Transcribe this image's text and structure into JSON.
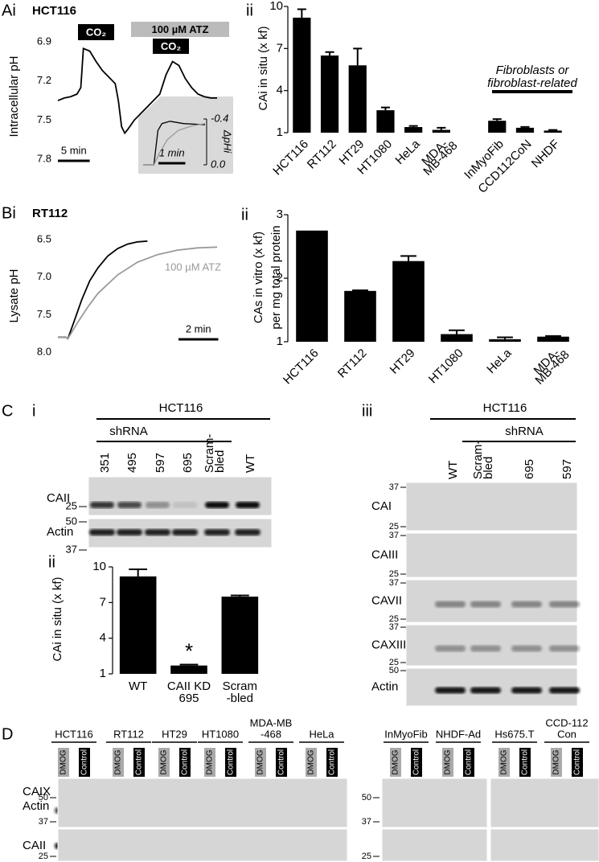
{
  "chart_data": [
    {
      "type": "line",
      "label": "Ai",
      "title": "HCT116",
      "y_label": "Intracellular pH",
      "annotations": [
        "CO₂",
        "100 µM ATZ",
        "CO₂"
      ],
      "x": [
        0,
        1,
        2,
        3,
        3.6,
        4,
        5,
        6,
        7,
        8,
        9,
        9.5,
        10,
        10.5,
        11,
        12,
        13,
        14,
        15,
        16,
        17,
        18,
        19,
        20,
        21,
        22,
        23,
        24,
        25
      ],
      "series": [
        {
          "color": "#000000",
          "values": [
            7.35,
            7.33,
            7.32,
            7.3,
            7.25,
            6.95,
            6.97,
            7.05,
            7.12,
            7.17,
            7.22,
            7.35,
            7.55,
            7.6,
            7.57,
            7.5,
            7.45,
            7.4,
            7.35,
            7.3,
            7.15,
            7.05,
            7.08,
            7.18,
            7.25,
            7.3,
            7.32,
            7.33,
            7.33
          ]
        }
      ],
      "xlim": [
        0,
        25
      ],
      "ylim": [
        7.8,
        6.8
      ],
      "yticks": [
        6.9,
        7.2,
        7.5,
        7.8
      ],
      "scale_bar": {
        "value": 5,
        "label": "5 min"
      }
    },
    {
      "type": "line",
      "y_label": "ΔpHi",
      "series": [
        {
          "color": "#000000",
          "x": [
            0,
            0.4,
            0.55,
            0.7,
            1.0,
            1.5,
            2.3
          ],
          "values": [
            0,
            0,
            -0.3,
            -0.36,
            -0.38,
            -0.36,
            -0.35
          ]
        },
        {
          "color": "#999999",
          "x": [
            0,
            0.4,
            0.6,
            0.9,
            1.3,
            1.8,
            2.3
          ],
          "values": [
            0,
            0,
            -0.1,
            -0.22,
            -0.3,
            -0.34,
            -0.36
          ]
        }
      ],
      "xlim": [
        0,
        2.3
      ],
      "ylim": [
        0,
        -0.4
      ],
      "yticks": [
        {
          "value": 0,
          "label": "0.0"
        },
        -0.4
      ],
      "scale_bar": {
        "value": 1,
        "label": "1 min"
      }
    },
    {
      "type": "bar",
      "label": "ii",
      "y_label": [
        "CAi in situ (x kf)"
      ],
      "categories": [
        "HCT116",
        "RT112",
        "HT29",
        "HT1080",
        "HeLa",
        [
          "MDA-",
          "MB-468"
        ],
        null,
        "InMyoFib",
        "CCD112CoN",
        "NHDF"
      ],
      "values": [
        9.2,
        6.5,
        5.8,
        2.6,
        1.4,
        1.2,
        null,
        1.85,
        1.35,
        1.15
      ],
      "errors": [
        0.6,
        0.25,
        1.2,
        0.2,
        0.08,
        0.15,
        null,
        0.12,
        0.06,
        0.04
      ],
      "color": "#000000",
      "ylim": [
        1,
        10
      ],
      "yticks": [
        1,
        4,
        7,
        10
      ],
      "annotation": [
        "Fibroblasts or",
        "fibroblast-related"
      ]
    },
    {
      "type": "line",
      "label": "Bi",
      "title": "RT112",
      "y_label": "Lysate pH",
      "series": [
        {
          "color": "#000000",
          "x": [
            0,
            0.4,
            0.5,
            0.8,
            1.2,
            1.6,
            2,
            2.5,
            3,
            3.5,
            4,
            4.5
          ],
          "values": [
            7.8,
            7.8,
            7.82,
            7.6,
            7.3,
            7.05,
            6.88,
            6.72,
            6.62,
            6.56,
            6.53,
            6.52
          ]
        },
        {
          "name": "100 µM ATZ",
          "color": "#999999",
          "x": [
            0,
            0.4,
            0.5,
            1,
            1.5,
            2,
            3,
            4,
            5,
            6,
            7,
            8
          ],
          "values": [
            7.8,
            7.8,
            7.82,
            7.6,
            7.4,
            7.22,
            6.97,
            6.8,
            6.7,
            6.64,
            6.61,
            6.6
          ]
        }
      ],
      "xlim": [
        0,
        8
      ],
      "ylim": [
        8.0,
        6.5
      ],
      "yticks": [
        6.5,
        {
          "value": 7,
          "label": "7.0"
        },
        7.5,
        {
          "value": 8,
          "label": "8.0"
        }
      ],
      "scale_bar": {
        "value": 2,
        "label": "2 min"
      }
    },
    {
      "type": "bar",
      "label": "ii",
      "y_label": [
        "CAs in vitro (x kf)",
        "per mg total protein"
      ],
      "categories": [
        "HCT116",
        "RT112",
        "HT29",
        "HT1080",
        "HeLa",
        [
          "MDA-",
          "MB-468"
        ]
      ],
      "values": [
        2.75,
        1.8,
        2.27,
        1.12,
        1.04,
        1.08
      ],
      "errors": [
        null,
        0.01,
        0.08,
        0.06,
        0.03,
        0.01
      ],
      "color": "#000000",
      "ylim": [
        1,
        3
      ],
      "yticks": [
        1,
        2,
        3
      ]
    },
    {
      "type": "bar",
      "label": "ii",
      "y_label": [
        "CAi in situ (x kf)"
      ],
      "categories": [
        "WT",
        [
          "CAII KD",
          "695"
        ],
        [
          "Scram",
          "-bled"
        ]
      ],
      "values": [
        9.2,
        1.7,
        7.5
      ],
      "errors": [
        0.6,
        0.08,
        0.1
      ],
      "marker_labels": [
        null,
        "*",
        null
      ],
      "color": "#000000",
      "ylim": [
        1,
        10
      ],
      "yticks": [
        1,
        4,
        7,
        10
      ]
    }
  ],
  "blots": {
    "c_i": {
      "label": "C",
      "sublabel": "i",
      "header": "HCT116",
      "subheader": "shRNA",
      "lanes": [
        "351",
        "495",
        "597",
        "695",
        [
          "Scram-",
          "bled"
        ],
        "WT"
      ],
      "rows": [
        "CAII",
        "Actin"
      ],
      "markers": [
        25,
        50,
        37
      ]
    },
    "c_iii": {
      "label": "iii",
      "header": "HCT116",
      "subheader": "shRNA",
      "lanes": [
        "WT",
        [
          "Scram-",
          "bled"
        ],
        "695",
        "597"
      ],
      "rows": [
        "CAI",
        "CAIII",
        "CAVII",
        "CAXIII",
        "Actin"
      ],
      "markers": [
        37,
        25,
        37,
        25,
        37,
        25,
        37,
        25,
        50
      ]
    },
    "d": {
      "label": "D",
      "rows": [
        "CAIX",
        "Actin",
        "CAII"
      ],
      "left_groups": [
        {
          "name": [
            "HCT116"
          ],
          "lanes": [
            "DMOG",
            "Control"
          ]
        },
        {
          "name": [
            "RT112"
          ],
          "lanes": [
            "DMOG",
            "Control"
          ]
        },
        {
          "name": [
            "HT29"
          ],
          "lanes": [
            "DMOG",
            "Control"
          ]
        },
        {
          "name": [
            "HT1080"
          ],
          "lanes": [
            "DMOG",
            "Control"
          ]
        },
        {
          "name": [
            "MDA-MB",
            "-468"
          ],
          "lanes": [
            "DMOG",
            "Control"
          ]
        },
        {
          "name": [
            "HeLa"
          ],
          "lanes": [
            "DMOG",
            "Control"
          ]
        }
      ],
      "right_groups": [
        {
          "name": [
            "InMyoFib"
          ],
          "lanes": [
            "DMOG",
            "Control"
          ]
        },
        {
          "name": [
            "NHDF-Ad"
          ],
          "lanes": [
            "DMOG",
            "Control"
          ]
        },
        {
          "name": [
            "Hs675.T"
          ],
          "lanes": [
            "DMOG",
            "Control"
          ]
        },
        {
          "name": [
            "CCD-112",
            "Con"
          ],
          "lanes": [
            "DMOG",
            "Control"
          ]
        }
      ],
      "left_markers": [
        50,
        37,
        25
      ],
      "right_markers": [
        50,
        37,
        25
      ]
    }
  }
}
